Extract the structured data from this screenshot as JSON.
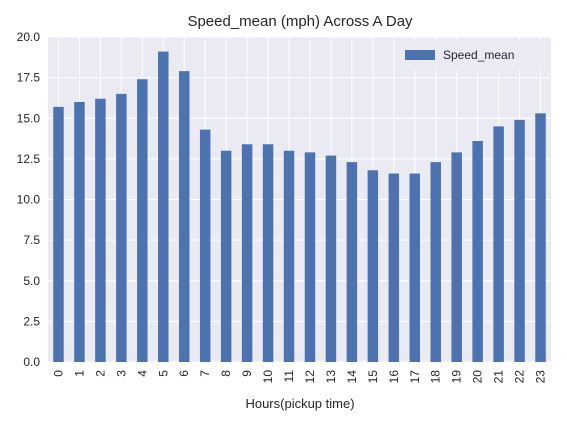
{
  "chart_data": {
    "type": "bar",
    "title": "Speed_mean (mph) Across A Day",
    "xlabel": "Hours(pickup time)",
    "ylabel": "",
    "ylim": [
      0,
      20
    ],
    "yticks": [
      "0.0",
      "2.5",
      "5.0",
      "7.5",
      "10.0",
      "12.5",
      "15.0",
      "17.5",
      "20.0"
    ],
    "categories": [
      "0",
      "1",
      "2",
      "3",
      "4",
      "5",
      "6",
      "7",
      "8",
      "9",
      "10",
      "11",
      "12",
      "13",
      "14",
      "15",
      "16",
      "17",
      "18",
      "19",
      "20",
      "21",
      "22",
      "23"
    ],
    "series": [
      {
        "name": "Speed_mean",
        "color": "#4c72b0",
        "values": [
          15.7,
          16.0,
          16.2,
          16.5,
          17.4,
          19.1,
          17.9,
          14.3,
          13.0,
          13.4,
          13.4,
          13.0,
          12.9,
          12.7,
          12.3,
          11.8,
          11.6,
          11.6,
          12.3,
          12.9,
          13.6,
          14.5,
          14.9,
          15.3
        ]
      }
    ],
    "grid": true,
    "legend_position": "top-right",
    "background": "#eaeaf2"
  }
}
